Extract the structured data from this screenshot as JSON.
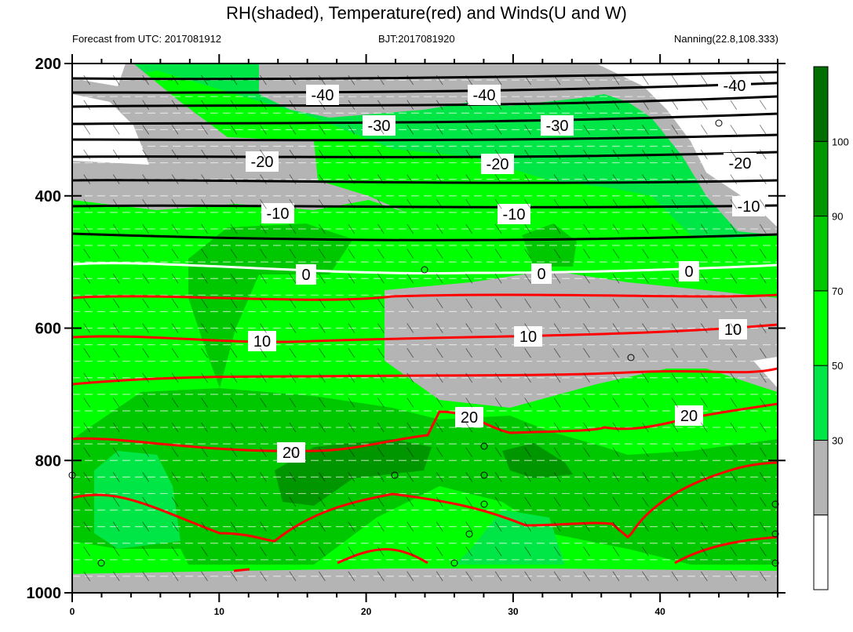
{
  "chart_data": {
    "type": "contour",
    "title": "RH(shaded), Temperature(red) and Winds(U and W)",
    "subtitle_left": "Forecast from UTC: 2017081912",
    "subtitle_center": "BJT:2017081920",
    "subtitle_right": "Nanning(22.8,108.333)",
    "x_ticks": [
      0,
      10,
      20,
      30,
      40
    ],
    "xlim": [
      0,
      48
    ],
    "y_ticks": [
      200,
      400,
      600,
      800,
      1000
    ],
    "ylim": [
      200,
      1000
    ],
    "y_direction": "pressure decreasing upward",
    "colorbar": {
      "levels": [
        30,
        50,
        70,
        90,
        100
      ],
      "labels": [
        "30",
        "50",
        "70",
        "90",
        "100"
      ],
      "colors": [
        "#ffffff",
        "#b4b4b4",
        "#00e646",
        "#00ff00",
        "#00c800",
        "#009600",
        "#006e00"
      ]
    },
    "temperature_contours": [
      {
        "value": -40,
        "label": "-40",
        "color": "#000000"
      },
      {
        "value": -30,
        "label": "-30",
        "color": "#000000"
      },
      {
        "value": -20,
        "label": "-20",
        "color": "#000000"
      },
      {
        "value": -10,
        "label": "-10",
        "color": "#000000"
      },
      {
        "value": 0,
        "label": "0",
        "color": "#ffffff"
      },
      {
        "value": 10,
        "label": "10",
        "color": "#ff0000"
      },
      {
        "value": 20,
        "label": "20",
        "color": "#ff0000"
      }
    ]
  }
}
